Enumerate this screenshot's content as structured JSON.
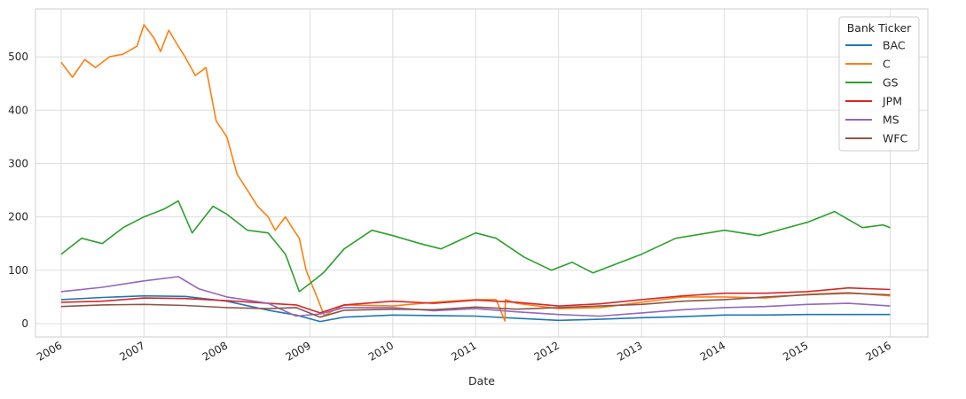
{
  "chart_data": {
    "type": "line",
    "title": "",
    "xlabel": "Date",
    "ylabel": "",
    "xlim": [
      "2005-09-10",
      "2016-06-15"
    ],
    "ylim": [
      -25,
      590
    ],
    "x_ticks": [
      "2006",
      "2007",
      "2008",
      "2009",
      "2010",
      "2011",
      "2012",
      "2013",
      "2014",
      "2015",
      "2016"
    ],
    "y_ticks": [
      0,
      100,
      200,
      300,
      400,
      500
    ],
    "grid": true,
    "legend": {
      "title": "Bank Ticker",
      "position": "top-right"
    },
    "series": [
      {
        "name": "BAC",
        "color": "#1f77b4",
        "x": [
          "2006-01-01",
          "2006-07-01",
          "2007-01-01",
          "2007-07-01",
          "2008-01-01",
          "2008-07-01",
          "2008-11-01",
          "2009-02-15",
          "2009-06-01",
          "2010-01-01",
          "2010-07-01",
          "2011-01-01",
          "2011-07-01",
          "2012-01-01",
          "2012-07-01",
          "2013-01-01",
          "2013-07-01",
          "2014-01-01",
          "2014-07-01",
          "2015-01-01",
          "2015-07-01",
          "2016-01-01"
        ],
        "values": [
          45,
          49,
          52,
          51,
          42,
          25,
          16,
          4,
          12,
          16,
          15,
          14,
          10,
          6,
          8,
          11,
          13,
          16,
          16,
          17,
          17,
          17
        ]
      },
      {
        "name": "C",
        "color": "#ff7f0e",
        "x": [
          "2006-01-01",
          "2006-02-20",
          "2006-04-15",
          "2006-06-01",
          "2006-08-01",
          "2006-10-01",
          "2006-12-01",
          "2007-01-01",
          "2007-02-15",
          "2007-03-15",
          "2007-04-20",
          "2007-06-01",
          "2007-07-01",
          "2007-08-15",
          "2007-10-01",
          "2007-11-15",
          "2008-01-01",
          "2008-02-15",
          "2008-04-01",
          "2008-05-15",
          "2008-07-01",
          "2008-08-01",
          "2008-09-15",
          "2008-10-15",
          "2008-11-15",
          "2008-12-15",
          "2009-02-01",
          "2009-03-05",
          "2009-06-01",
          "2010-01-01",
          "2010-07-01",
          "2011-01-01",
          "2011-04-01",
          "2011-05-10",
          "2011-05-12",
          "2011-07-01",
          "2012-01-01",
          "2012-07-01",
          "2013-01-01",
          "2013-07-01",
          "2014-01-01",
          "2014-07-01",
          "2015-01-01",
          "2015-07-01",
          "2016-01-01"
        ],
        "values": [
          490,
          462,
          495,
          480,
          500,
          505,
          520,
          560,
          535,
          510,
          550,
          520,
          500,
          465,
          480,
          380,
          350,
          280,
          250,
          220,
          200,
          175,
          200,
          180,
          160,
          100,
          50,
          15,
          35,
          33,
          40,
          45,
          45,
          5,
          45,
          38,
          28,
          30,
          40,
          50,
          50,
          48,
          55,
          58,
          52
        ]
      },
      {
        "name": "GS",
        "color": "#2ca02c",
        "x": [
          "2006-01-01",
          "2006-04-01",
          "2006-07-01",
          "2006-10-01",
          "2007-01-01",
          "2007-04-01",
          "2007-06-01",
          "2007-08-01",
          "2007-11-01",
          "2008-01-01",
          "2008-04-01",
          "2008-07-01",
          "2008-09-15",
          "2008-11-15",
          "2009-01-01",
          "2009-03-01",
          "2009-06-01",
          "2009-10-01",
          "2010-01-01",
          "2010-05-01",
          "2010-08-01",
          "2011-01-01",
          "2011-04-01",
          "2011-08-01",
          "2011-12-01",
          "2012-03-01",
          "2012-06-01",
          "2012-10-01",
          "2013-01-01",
          "2013-06-01",
          "2014-01-01",
          "2014-06-01",
          "2015-01-01",
          "2015-05-01",
          "2015-09-01",
          "2015-12-01",
          "2016-01-01"
        ],
        "values": [
          130,
          160,
          150,
          180,
          200,
          215,
          230,
          170,
          220,
          205,
          175,
          170,
          130,
          60,
          75,
          95,
          140,
          175,
          165,
          150,
          140,
          170,
          160,
          125,
          100,
          115,
          95,
          115,
          130,
          160,
          175,
          165,
          190,
          210,
          180,
          185,
          180
        ]
      },
      {
        "name": "JPM",
        "color": "#d62728",
        "x": [
          "2006-01-01",
          "2006-07-01",
          "2007-01-01",
          "2007-07-01",
          "2008-01-01",
          "2008-07-01",
          "2008-11-01",
          "2009-02-15",
          "2009-06-01",
          "2010-01-01",
          "2010-07-01",
          "2011-01-01",
          "2011-07-01",
          "2012-01-01",
          "2012-07-01",
          "2013-01-01",
          "2013-07-01",
          "2014-01-01",
          "2014-07-01",
          "2015-01-01",
          "2015-07-01",
          "2016-01-01"
        ],
        "values": [
          40,
          42,
          48,
          47,
          43,
          38,
          35,
          20,
          35,
          42,
          38,
          44,
          40,
          33,
          37,
          45,
          52,
          57,
          57,
          60,
          67,
          64
        ]
      },
      {
        "name": "MS",
        "color": "#9467bd",
        "x": [
          "2006-01-01",
          "2006-07-01",
          "2007-01-01",
          "2007-06-01",
          "2007-09-01",
          "2008-01-01",
          "2008-07-01",
          "2008-11-01",
          "2009-02-15",
          "2009-06-01",
          "2010-01-01",
          "2010-07-01",
          "2011-01-01",
          "2011-07-01",
          "2012-01-01",
          "2012-07-01",
          "2013-01-01",
          "2013-07-01",
          "2014-01-01",
          "2014-07-01",
          "2015-01-01",
          "2015-07-01",
          "2016-01-01"
        ],
        "values": [
          60,
          68,
          80,
          88,
          65,
          50,
          38,
          14,
          18,
          30,
          30,
          24,
          28,
          22,
          17,
          14,
          20,
          26,
          30,
          32,
          36,
          38,
          33
        ]
      },
      {
        "name": "WFC",
        "color": "#8c564b",
        "x": [
          "2006-01-01",
          "2006-07-01",
          "2007-01-01",
          "2007-07-01",
          "2008-01-01",
          "2008-07-01",
          "2008-11-01",
          "2009-02-15",
          "2009-06-01",
          "2010-01-01",
          "2010-07-01",
          "2011-01-01",
          "2011-07-01",
          "2012-01-01",
          "2012-07-01",
          "2013-01-01",
          "2013-07-01",
          "2014-01-01",
          "2014-07-01",
          "2015-01-01",
          "2015-07-01",
          "2016-01-01"
        ],
        "values": [
          32,
          35,
          36,
          34,
          30,
          28,
          30,
          12,
          25,
          27,
          26,
          31,
          27,
          30,
          33,
          36,
          42,
          45,
          50,
          54,
          57,
          54
        ]
      }
    ]
  }
}
